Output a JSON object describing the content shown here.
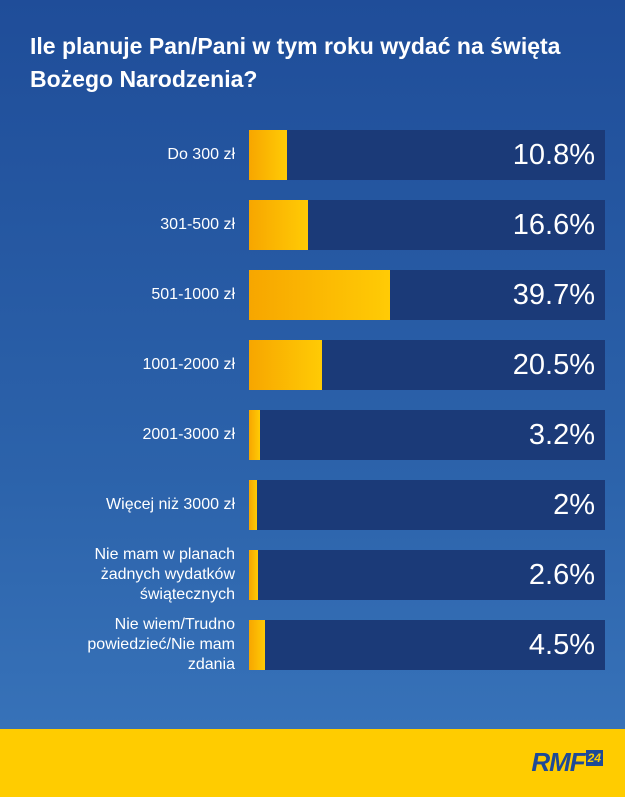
{
  "chart_data": {
    "type": "bar",
    "orientation": "horizontal",
    "title": "Ile planuje Pan/Pani w tym roku wydać na święta Bożego Narodzenia?",
    "categories": [
      "Do 300 zł",
      "301-500 zł",
      "501-1000 zł",
      "1001-2000 zł",
      "2001-3000 zł",
      "Więcej niż 3000 zł",
      "Nie mam w planach żadnych wydatków świątecznych",
      "Nie wiem/Trudno powiedzieć/Nie mam zdania"
    ],
    "values": [
      10.8,
      16.6,
      39.7,
      20.5,
      3.2,
      2,
      2.6,
      4.5
    ],
    "value_labels": [
      "10.8%",
      "16.6%",
      "39.7%",
      "20.5%",
      "3.2%",
      "2%",
      "2.6%",
      "4.5%"
    ],
    "xlim": [
      0,
      100
    ],
    "unit": "%",
    "grid": false,
    "colors": {
      "fill": "#ffcb05",
      "fill_start": "#f7a600",
      "track": "#1b3a78",
      "background": "#2558a3"
    }
  },
  "label_lines": [
    [
      "Do 300 zł"
    ],
    [
      "301-500 zł"
    ],
    [
      "501-1000 zł"
    ],
    [
      "1001-2000 zł"
    ],
    [
      "2001-3000 zł"
    ],
    [
      "Więcej niż 3000 zł"
    ],
    [
      "Nie mam w planach",
      "żadnych wydatków",
      "świątecznych"
    ],
    [
      "Nie wiem/Trudno",
      "powiedzieć/Nie mam",
      "zdania"
    ]
  ],
  "footer": {
    "logo_text": "RMF",
    "logo_badge": "24",
    "background": "#ffcc00"
  }
}
